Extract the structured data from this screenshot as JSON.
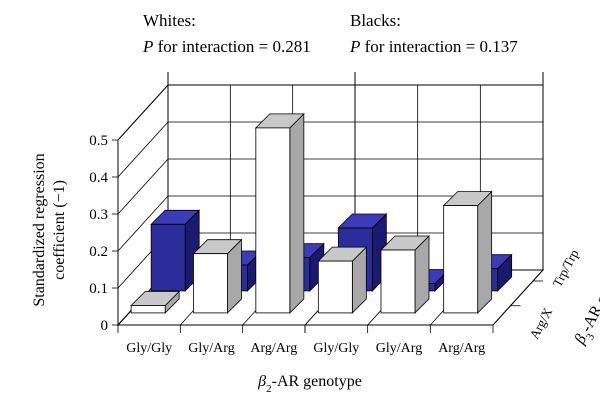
{
  "chart_data": {
    "type": "bar",
    "style": "3d-grouped",
    "panels": [
      {
        "title_line1": "Whites:",
        "title_p": "P",
        "title_rest": " for interaction = 0.281"
      },
      {
        "title_line1": "Blacks:",
        "title_p": "P",
        "title_rest": " for interaction = 0.137"
      }
    ],
    "categories": [
      "Gly/Gly",
      "Gly/Arg",
      "Arg/Arg"
    ],
    "depth_categories": [
      "Arg/X",
      "Trp/Trp"
    ],
    "series": [
      {
        "name": "Arg/X",
        "color": "#ffffff",
        "top_color": "#c8c8c8",
        "side_color": "#a8a8a8",
        "values": {
          "Whites": [
            0.02,
            0.16,
            0.5
          ],
          "Blacks": [
            0.14,
            0.17,
            0.29
          ]
        }
      },
      {
        "name": "Trp/Trp",
        "color": "#2c2c9a",
        "top_color": "#3c3cb8",
        "side_color": "#1a1a6e",
        "values": {
          "Whites": [
            0.18,
            0.07,
            0.09
          ],
          "Blacks": [
            0.17,
            0.02,
            0.06
          ]
        }
      }
    ],
    "yticks": [
      "0",
      "0.1",
      "0.2",
      "0.3",
      "0.4",
      "0.5"
    ],
    "ylim": [
      0,
      0.5
    ],
    "ylabel_line1": "Standardized regression",
    "ylabel_line2": "coefficient (−1)",
    "xlabel_beta": "β",
    "xlabel_sub": "2",
    "xlabel_rest": "-AR genotype",
    "zlabel_beta": "β",
    "zlabel_sub": "3",
    "zlabel_rest": "-AR genotype",
    "gridlines": true
  }
}
